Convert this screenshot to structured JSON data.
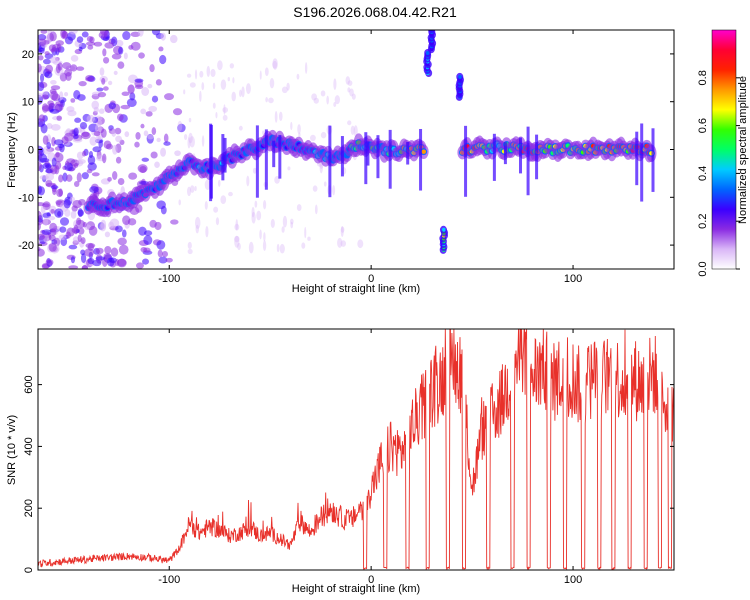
{
  "title": "S196.2026.068.04.42.R21",
  "chart_data": [
    {
      "type": "heatmap",
      "xlabel": "Height of straight line (km)",
      "ylabel": "Frequency (Hz)",
      "xlim": [
        -165,
        150
      ],
      "ylim": [
        -25,
        25
      ],
      "xticks": [
        -100,
        0,
        100
      ],
      "yticks": [
        -20,
        -10,
        0,
        10,
        20
      ],
      "colorbar": {
        "label": "Normalized spectral amplitude",
        "range": [
          0,
          1
        ],
        "ticks": [
          "0.0",
          "0.2",
          "0.4",
          "0.6",
          "0.8"
        ],
        "stops": [
          "#ffffff",
          "#d9b6f7",
          "#8a2be2",
          "#3a00ff",
          "#0066ff",
          "#00ccff",
          "#00ff66",
          "#33ff00",
          "#ffff00",
          "#ff9900",
          "#ff2200",
          "#ff0033",
          "#ff00cc"
        ]
      },
      "ridge": [
        {
          "x": -140,
          "freq": -12,
          "amp": 0.25
        },
        {
          "x": -120,
          "freq": -11,
          "amp": 0.3
        },
        {
          "x": -100,
          "freq": -6,
          "amp": 0.3
        },
        {
          "x": -90,
          "freq": -3,
          "amp": 0.45
        },
        {
          "x": -80,
          "freq": -4,
          "amp": 0.4
        },
        {
          "x": -70,
          "freq": -2,
          "amp": 0.35
        },
        {
          "x": -50,
          "freq": 2,
          "amp": 0.35
        },
        {
          "x": -30,
          "freq": 0,
          "amp": 0.35
        },
        {
          "x": -20,
          "freq": -2,
          "amp": 0.45
        },
        {
          "x": -5,
          "freq": 1,
          "amp": 0.5
        },
        {
          "x": 10,
          "freq": -0.5,
          "amp": 0.55
        },
        {
          "x": 20,
          "freq": 0,
          "amp": 0.8
        },
        {
          "x": 50,
          "freq": 0,
          "amp": 0.9
        },
        {
          "x": 60,
          "freq": 0.5,
          "amp": 0.6
        },
        {
          "x": 80,
          "freq": 0,
          "amp": 0.9
        },
        {
          "x": 90,
          "freq": 0,
          "amp": 0.8
        },
        {
          "x": 100,
          "freq": 0,
          "amp": 0.7
        },
        {
          "x": 110,
          "freq": 0,
          "amp": 0.9
        },
        {
          "x": 125,
          "freq": 0,
          "amp": 0.85
        },
        {
          "x": 140,
          "freq": 0,
          "amp": 0.85
        }
      ],
      "aliased_segments": [
        {
          "x": 28,
          "freq": 18,
          "amp": 0.4
        },
        {
          "x": 30,
          "freq": 23,
          "amp": 0.3
        },
        {
          "x": 36,
          "freq": -19,
          "amp": 0.6
        },
        {
          "x": 44,
          "freq": 13,
          "amp": 0.3
        }
      ],
      "gap": [
        26,
        45
      ]
    },
    {
      "type": "line",
      "xlabel": "Height of straight line (km)",
      "ylabel": "SNR (10 * v/v)",
      "xlim": [
        -165,
        150
      ],
      "ylim": [
        0,
        780
      ],
      "xticks": [
        -100,
        0,
        100
      ],
      "yticks": [
        0,
        200,
        400,
        600
      ],
      "color": "#e8302a",
      "x": [
        -165,
        -150,
        -140,
        -130,
        -120,
        -110,
        -100,
        -95,
        -90,
        -85,
        -80,
        -75,
        -70,
        -65,
        -60,
        -55,
        -50,
        -45,
        -40,
        -35,
        -30,
        -25,
        -20,
        -15,
        -10,
        -5,
        0,
        5,
        10,
        15,
        20,
        25,
        30,
        35,
        40,
        45,
        50,
        55,
        60,
        65,
        70,
        75,
        80,
        85,
        90,
        95,
        100,
        105,
        110,
        115,
        120,
        125,
        130,
        135,
        140,
        145,
        150
      ],
      "y": [
        20,
        30,
        35,
        40,
        45,
        40,
        30,
        70,
        150,
        120,
        140,
        130,
        110,
        120,
        140,
        110,
        120,
        100,
        80,
        160,
        120,
        170,
        200,
        170,
        160,
        200,
        260,
        350,
        400,
        380,
        460,
        520,
        580,
        620,
        680,
        640,
        260,
        450,
        500,
        550,
        640,
        720,
        630,
        660,
        600,
        640,
        620,
        580,
        630,
        620,
        640,
        600,
        620,
        600,
        640,
        560,
        520
      ],
      "dropouts": [
        -3,
        7,
        18,
        28,
        38,
        46,
        58,
        70,
        78,
        88,
        96,
        105,
        113,
        120,
        128,
        136,
        143,
        148
      ]
    }
  ]
}
